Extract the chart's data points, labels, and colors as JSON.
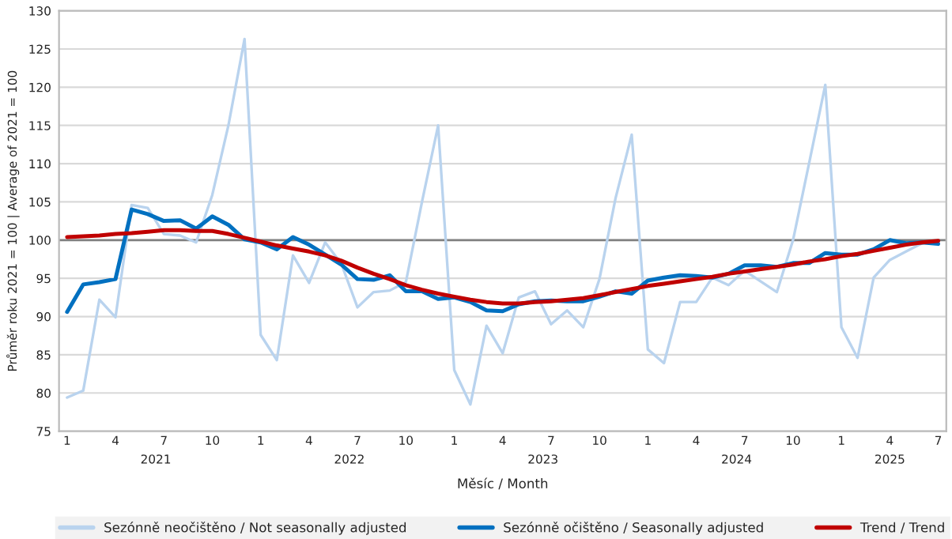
{
  "chart_data": {
    "type": "line",
    "xlabel": "Měsíc / Month",
    "ylabel": "Průměr roku 2021 = 100 | Average of 2021 = 100",
    "categories": [
      "1",
      null,
      null,
      "4",
      null,
      null,
      "7",
      null,
      null,
      "10",
      null,
      null,
      "1",
      null,
      null,
      "4",
      null,
      null,
      "7",
      null,
      null,
      "10",
      null,
      null,
      "1",
      null,
      null,
      "4",
      null,
      null,
      "7",
      null,
      null,
      "10",
      null,
      null,
      "1",
      null,
      null,
      "4",
      null,
      null,
      "7",
      null,
      null,
      "10",
      null,
      null,
      "1",
      null,
      null,
      "4",
      null,
      null,
      "7"
    ],
    "annotations": [
      "2021",
      "2022",
      "2023",
      "2024",
      "2025"
    ],
    "series": [
      {
        "name": "Sezónně neočištěno / Not seasonally adjusted",
        "color": "#b9d3ee",
        "values": [
          79.4,
          80.3,
          92.2,
          89.9,
          104.6,
          104.2,
          100.8,
          100.6,
          99.7,
          105.9,
          115.0,
          126.3,
          87.6,
          84.3,
          98.0,
          94.4,
          99.7,
          96.9,
          91.2,
          93.2,
          93.4,
          94.5,
          105.0,
          115.0,
          83.0,
          78.5,
          88.8,
          85.2,
          92.5,
          93.3,
          89.0,
          90.8,
          88.6,
          94.9,
          105.5,
          113.8,
          85.7,
          83.9,
          91.9,
          91.9,
          95.1,
          94.1,
          96.0,
          94.6,
          93.2,
          100.0,
          110.1,
          120.3,
          88.6,
          84.6,
          95.1,
          97.4,
          98.5,
          99.6,
          99.7
        ]
      },
      {
        "name": "Sezónně očištěno / Seasonally adjusted",
        "color": "#0070c0",
        "values": [
          90.6,
          94.2,
          94.5,
          94.9,
          104.0,
          103.4,
          102.5,
          102.6,
          101.5,
          103.1,
          102.0,
          100.1,
          99.7,
          98.8,
          100.4,
          99.4,
          98.1,
          96.8,
          94.9,
          94.8,
          95.4,
          93.3,
          93.3,
          92.3,
          92.5,
          91.9,
          90.8,
          90.7,
          91.6,
          92.0,
          92.1,
          92.0,
          92.0,
          92.6,
          93.3,
          93.0,
          94.7,
          95.1,
          95.4,
          95.3,
          95.1,
          95.6,
          96.7,
          96.7,
          96.5,
          97.0,
          97.0,
          98.3,
          98.1,
          98.1,
          98.8,
          100.0,
          99.6,
          99.7,
          99.5
        ]
      },
      {
        "name": "Trend / Trend",
        "color": "#c00000",
        "values": [
          100.4,
          100.5,
          100.6,
          100.8,
          100.9,
          101.1,
          101.3,
          101.3,
          101.2,
          101.2,
          100.8,
          100.3,
          99.8,
          99.3,
          98.9,
          98.5,
          98.0,
          97.3,
          96.4,
          95.6,
          94.9,
          94.1,
          93.5,
          93.0,
          92.6,
          92.2,
          91.9,
          91.7,
          91.7,
          91.9,
          92.0,
          92.2,
          92.4,
          92.8,
          93.2,
          93.6,
          94.0,
          94.3,
          94.6,
          94.9,
          95.2,
          95.6,
          95.9,
          96.2,
          96.5,
          96.8,
          97.2,
          97.5,
          97.9,
          98.2,
          98.6,
          99.0,
          99.4,
          99.7,
          99.9
        ]
      }
    ],
    "ylim": [
      75,
      130
    ],
    "yticks": [
      75,
      80,
      85,
      90,
      95,
      100,
      105,
      110,
      115,
      120,
      125,
      130
    ],
    "ref_lines": [
      {
        "axis": "y",
        "value": 100,
        "color": "#808080"
      }
    ],
    "grid": "y",
    "legend": "bottom",
    "marker": "none",
    "line_style": "solid"
  }
}
